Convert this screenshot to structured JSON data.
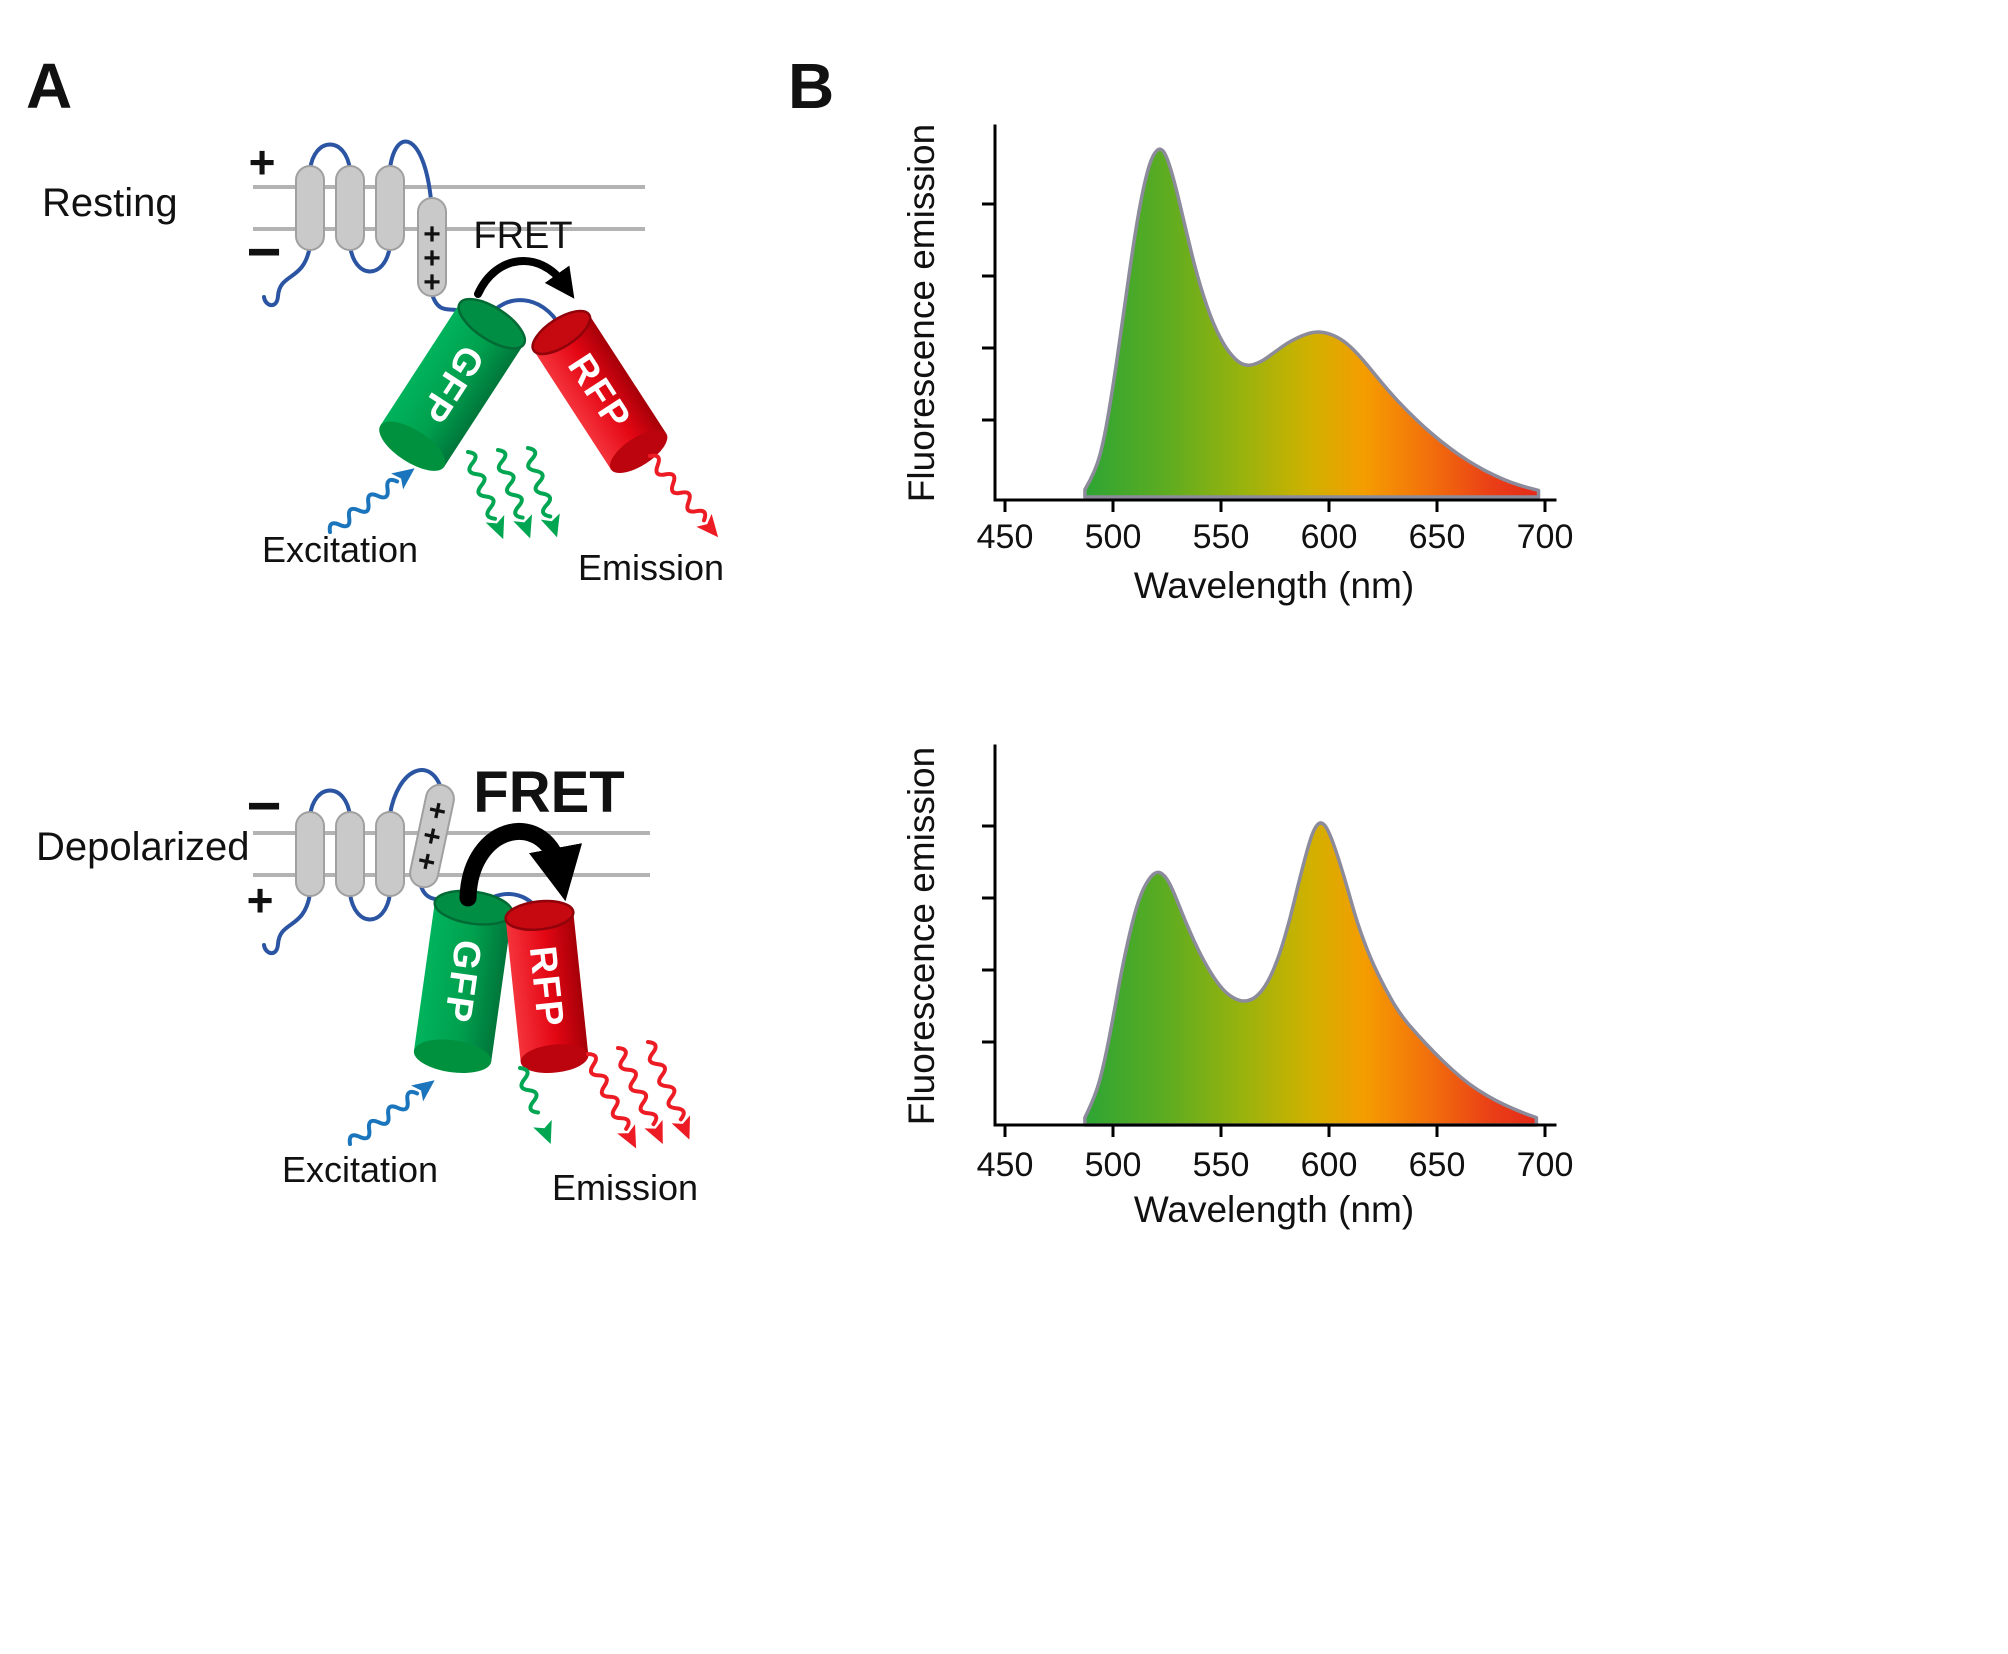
{
  "figure": {
    "background": "#ffffff",
    "panel_a_label": "A",
    "panel_b_label": "B"
  },
  "panel_a": {
    "resting": {
      "state_label": "Resting",
      "membrane_charge_top": "+",
      "membrane_charge_bottom": "−",
      "s4_charges": [
        "+",
        "+",
        "+"
      ],
      "fret_label": "FRET",
      "gfp_label": "GFP",
      "rfp_label": "RFP",
      "excitation_label": "Excitation",
      "emission_label": "Emission"
    },
    "depolarized": {
      "state_label": "Depolarized",
      "membrane_charge_top": "−",
      "membrane_charge_bottom": "+",
      "s4_charges": [
        "+",
        "+",
        "+"
      ],
      "fret_label": "FRET",
      "gfp_label": "GFP",
      "rfp_label": "RFP",
      "excitation_label": "Excitation",
      "emission_label": "Emission"
    },
    "colors": {
      "gfp_green": "#00A651",
      "rfp_red": "#E30613",
      "excitation_blue": "#1B75BC",
      "linker_blue": "#2B55A2",
      "membrane_gray": "#C8C8C8"
    }
  },
  "chart_data": [
    {
      "type": "area",
      "title": "",
      "xlabel": "Wavelength (nm)",
      "ylabel": "Fluorescence emission",
      "xlim": [
        450,
        700
      ],
      "xticks": [
        "450",
        "500",
        "550",
        "600",
        "650",
        "700"
      ],
      "y_axis_tick_count": 4,
      "grid": false,
      "legend": false,
      "fill_gradient": [
        "#2DA534",
        "#99B30D",
        "#F59D00",
        "#E3231B"
      ],
      "peaks": [
        {
          "wavelength": 522,
          "rel_intensity": 0.95
        },
        {
          "wavelength": 595,
          "rel_intensity": 0.45
        }
      ],
      "series": [
        {
          "name": "resting emission",
          "points": [
            [
              487,
              0.02
            ],
            [
              492,
              0.07
            ],
            [
              496,
              0.16
            ],
            [
              500,
              0.3
            ],
            [
              504,
              0.46
            ],
            [
              508,
              0.63
            ],
            [
              512,
              0.78
            ],
            [
              516,
              0.89
            ],
            [
              519,
              0.935
            ],
            [
              522,
              0.95
            ],
            [
              525,
              0.925
            ],
            [
              529,
              0.845
            ],
            [
              534,
              0.72
            ],
            [
              539,
              0.6
            ],
            [
              545,
              0.49
            ],
            [
              551,
              0.415
            ],
            [
              557,
              0.37
            ],
            [
              562,
              0.355
            ],
            [
              568,
              0.365
            ],
            [
              574,
              0.39
            ],
            [
              581,
              0.42
            ],
            [
              588,
              0.44
            ],
            [
              594,
              0.45
            ],
            [
              600,
              0.445
            ],
            [
              607,
              0.425
            ],
            [
              614,
              0.385
            ],
            [
              621,
              0.335
            ],
            [
              628,
              0.285
            ],
            [
              636,
              0.235
            ],
            [
              644,
              0.19
            ],
            [
              652,
              0.15
            ],
            [
              660,
              0.115
            ],
            [
              668,
              0.085
            ],
            [
              676,
              0.06
            ],
            [
              684,
              0.04
            ],
            [
              691,
              0.027
            ],
            [
              697,
              0.018
            ]
          ]
        }
      ]
    },
    {
      "type": "area",
      "title": "",
      "xlabel": "Wavelength (nm)",
      "ylabel": "Fluorescence emission",
      "xlim": [
        450,
        700
      ],
      "xticks": [
        "450",
        "500",
        "550",
        "600",
        "650",
        "700"
      ],
      "y_axis_tick_count": 4,
      "grid": false,
      "legend": false,
      "fill_gradient": [
        "#2DA534",
        "#99B30D",
        "#F59D00",
        "#E3231B"
      ],
      "peaks": [
        {
          "wavelength": 521,
          "rel_intensity": 0.69
        },
        {
          "wavelength": 596,
          "rel_intensity": 0.83
        }
      ],
      "series": [
        {
          "name": "depolarized emission",
          "points": [
            [
              487,
              0.02
            ],
            [
              492,
              0.08
            ],
            [
              496,
              0.17
            ],
            [
              500,
              0.29
            ],
            [
              504,
              0.42
            ],
            [
              508,
              0.53
            ],
            [
              512,
              0.615
            ],
            [
              516,
              0.665
            ],
            [
              520,
              0.69
            ],
            [
              524,
              0.68
            ],
            [
              528,
              0.635
            ],
            [
              533,
              0.56
            ],
            [
              539,
              0.48
            ],
            [
              545,
              0.415
            ],
            [
              551,
              0.365
            ],
            [
              557,
              0.34
            ],
            [
              562,
              0.335
            ],
            [
              567,
              0.35
            ],
            [
              572,
              0.39
            ],
            [
              577,
              0.46
            ],
            [
              582,
              0.56
            ],
            [
              586,
              0.66
            ],
            [
              590,
              0.75
            ],
            [
              593,
              0.805
            ],
            [
              596,
              0.825
            ],
            [
              599,
              0.81
            ],
            [
              603,
              0.75
            ],
            [
              608,
              0.655
            ],
            [
              613,
              0.55
            ],
            [
              619,
              0.455
            ],
            [
              626,
              0.37
            ],
            [
              633,
              0.3
            ],
            [
              641,
              0.245
            ],
            [
              649,
              0.195
            ],
            [
              657,
              0.15
            ],
            [
              665,
              0.11
            ],
            [
              673,
              0.08
            ],
            [
              681,
              0.055
            ],
            [
              689,
              0.035
            ],
            [
              696,
              0.02
            ]
          ]
        }
      ]
    }
  ]
}
